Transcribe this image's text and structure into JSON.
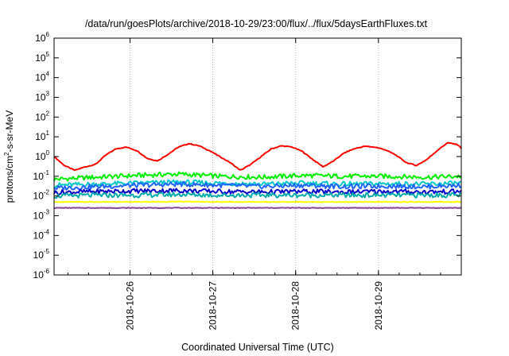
{
  "chart_data": {
    "type": "line",
    "title": "/data/run/goesPlots/archive/2018-10-29/23:00/flux/../flux/5daysEarthFluxes.txt",
    "xlabel": "Coordinated Universal Time (UTC)",
    "ylabel": {
      "main": "protons/cm",
      "sup": "2",
      "rest": "-s-sr-MeV"
    },
    "x_range": [
      "2018-10-25T02:00",
      "2018-10-30T00:00"
    ],
    "x_ticks": [
      "2018-10-26",
      "2018-10-27",
      "2018-10-28",
      "2018-10-29"
    ],
    "y_scale": "log",
    "ylim": [
      1e-06,
      1000000.0
    ],
    "y_ticks": [
      {
        "value": 1000000.0,
        "base": "10",
        "exp": "6"
      },
      {
        "value": 100000.0,
        "base": "10",
        "exp": "5"
      },
      {
        "value": 10000.0,
        "base": "10",
        "exp": "4"
      },
      {
        "value": 1000.0,
        "base": "10",
        "exp": "3"
      },
      {
        "value": 100.0,
        "base": "10",
        "exp": "2"
      },
      {
        "value": 10.0,
        "base": "10",
        "exp": "1"
      },
      {
        "value": 1.0,
        "base": "10",
        "exp": "0"
      },
      {
        "value": 0.1,
        "base": "10",
        "exp": "-1"
      },
      {
        "value": 0.01,
        "base": "10",
        "exp": "-2"
      },
      {
        "value": 0.001,
        "base": "10",
        "exp": "-3"
      },
      {
        "value": 0.0001,
        "base": "10",
        "exp": "-4"
      },
      {
        "value": 1e-05,
        "base": "10",
        "exp": "-5"
      },
      {
        "value": 1e-06,
        "base": "10",
        "exp": "-6"
      }
    ],
    "grid": true,
    "series": [
      {
        "color": "#ff0000",
        "x": [
          "2018-10-25T02:00",
          "2018-10-25T05:00",
          "2018-10-25T08:00",
          "2018-10-25T11:00",
          "2018-10-25T14:00",
          "2018-10-25T17:00",
          "2018-10-25T20:00",
          "2018-10-25T23:00",
          "2018-10-26T02:00",
          "2018-10-26T05:00",
          "2018-10-26T08:00",
          "2018-10-26T11:00",
          "2018-10-26T14:00",
          "2018-10-26T17:00",
          "2018-10-26T20:00",
          "2018-10-26T23:00",
          "2018-10-27T02:00",
          "2018-10-27T05:00",
          "2018-10-27T08:00",
          "2018-10-27T11:00",
          "2018-10-27T14:00",
          "2018-10-27T17:00",
          "2018-10-27T20:00",
          "2018-10-27T23:00",
          "2018-10-28T02:00",
          "2018-10-28T05:00",
          "2018-10-28T08:00",
          "2018-10-28T11:00",
          "2018-10-28T14:00",
          "2018-10-28T17:00",
          "2018-10-28T20:00",
          "2018-10-28T23:00",
          "2018-10-29T02:00",
          "2018-10-29T05:00",
          "2018-10-29T08:00",
          "2018-10-29T11:00",
          "2018-10-29T14:00",
          "2018-10-29T17:00",
          "2018-10-29T20:00",
          "2018-10-29T23:00",
          "2018-10-30T00:00"
        ],
        "values": [
          1.0,
          0.35,
          0.2,
          0.3,
          0.4,
          1.2,
          2.5,
          3.0,
          2.0,
          0.8,
          0.6,
          1.3,
          3.0,
          4.5,
          3.5,
          2.0,
          1.0,
          0.5,
          0.2,
          0.4,
          1.0,
          2.5,
          3.5,
          3.0,
          1.8,
          0.7,
          0.3,
          0.6,
          1.5,
          2.5,
          3.3,
          3.0,
          2.2,
          1.2,
          0.5,
          0.35,
          0.7,
          2.0,
          5.0,
          4.0,
          2.6
        ]
      },
      {
        "color": "#00ee00",
        "x": [
          "2018-10-25T02:00",
          "2018-10-25T14:00",
          "2018-10-26T02:00",
          "2018-10-26T14:00",
          "2018-10-27T02:00",
          "2018-10-27T14:00",
          "2018-10-28T02:00",
          "2018-10-28T14:00",
          "2018-10-29T02:00",
          "2018-10-29T14:00",
          "2018-10-30T00:00"
        ],
        "values": [
          0.07,
          0.09,
          0.11,
          0.13,
          0.1,
          0.09,
          0.11,
          0.1,
          0.1,
          0.09,
          0.1
        ]
      },
      {
        "color": "#00c8c8",
        "x": [
          "2018-10-25T02:00",
          "2018-10-25T14:00",
          "2018-10-26T02:00",
          "2018-10-26T14:00",
          "2018-10-27T02:00",
          "2018-10-27T14:00",
          "2018-10-28T02:00",
          "2018-10-28T14:00",
          "2018-10-29T02:00",
          "2018-10-29T14:00",
          "2018-10-30T00:00"
        ],
        "values": [
          0.035,
          0.04,
          0.045,
          0.05,
          0.045,
          0.04,
          0.045,
          0.04,
          0.042,
          0.04,
          0.045
        ]
      },
      {
        "color": "#1e64ff",
        "x": [
          "2018-10-25T02:00",
          "2018-10-25T14:00",
          "2018-10-26T02:00",
          "2018-10-26T14:00",
          "2018-10-27T02:00",
          "2018-10-27T14:00",
          "2018-10-28T02:00",
          "2018-10-28T14:00",
          "2018-10-29T02:00",
          "2018-10-29T14:00",
          "2018-10-30T00:00"
        ],
        "values": [
          0.025,
          0.03,
          0.035,
          0.04,
          0.035,
          0.03,
          0.035,
          0.03,
          0.032,
          0.03,
          0.035
        ]
      },
      {
        "color": "#0000cc",
        "x": [
          "2018-10-25T02:00",
          "2018-10-25T14:00",
          "2018-10-26T02:00",
          "2018-10-26T14:00",
          "2018-10-27T02:00",
          "2018-10-27T14:00",
          "2018-10-28T02:00",
          "2018-10-28T14:00",
          "2018-10-29T02:00",
          "2018-10-29T14:00",
          "2018-10-30T00:00"
        ],
        "values": [
          0.015,
          0.017,
          0.018,
          0.019,
          0.017,
          0.016,
          0.017,
          0.016,
          0.017,
          0.016,
          0.017
        ]
      },
      {
        "color": "#00aaaa",
        "x": [
          "2018-10-25T02:00",
          "2018-10-25T14:00",
          "2018-10-26T02:00",
          "2018-10-26T14:00",
          "2018-10-27T02:00",
          "2018-10-27T14:00",
          "2018-10-28T02:00",
          "2018-10-28T14:00",
          "2018-10-29T02:00",
          "2018-10-29T14:00",
          "2018-10-30T00:00"
        ],
        "values": [
          0.01,
          0.011,
          0.011,
          0.012,
          0.011,
          0.011,
          0.011,
          0.011,
          0.011,
          0.011,
          0.011
        ]
      },
      {
        "color": "#ffff00",
        "x": [
          "2018-10-25T02:00",
          "2018-10-25T14:00",
          "2018-10-26T02:00",
          "2018-10-26T14:00",
          "2018-10-27T02:00",
          "2018-10-27T14:00",
          "2018-10-28T02:00",
          "2018-10-28T14:00",
          "2018-10-29T02:00",
          "2018-10-29T14:00",
          "2018-10-30T00:00"
        ],
        "values": [
          0.005,
          0.005,
          0.005,
          0.0052,
          0.005,
          0.005,
          0.005,
          0.005,
          0.005,
          0.005,
          0.005
        ]
      },
      {
        "color": "#884499",
        "x": [
          "2018-10-25T02:00",
          "2018-10-25T14:00",
          "2018-10-26T02:00",
          "2018-10-26T14:00",
          "2018-10-27T02:00",
          "2018-10-27T14:00",
          "2018-10-28T02:00",
          "2018-10-28T14:00",
          "2018-10-29T02:00",
          "2018-10-29T14:00",
          "2018-10-30T00:00"
        ],
        "values": [
          0.0025,
          0.0025,
          0.0025,
          0.0025,
          0.0025,
          0.0025,
          0.0025,
          0.0025,
          0.0025,
          0.0025,
          0.0025
        ]
      }
    ]
  }
}
